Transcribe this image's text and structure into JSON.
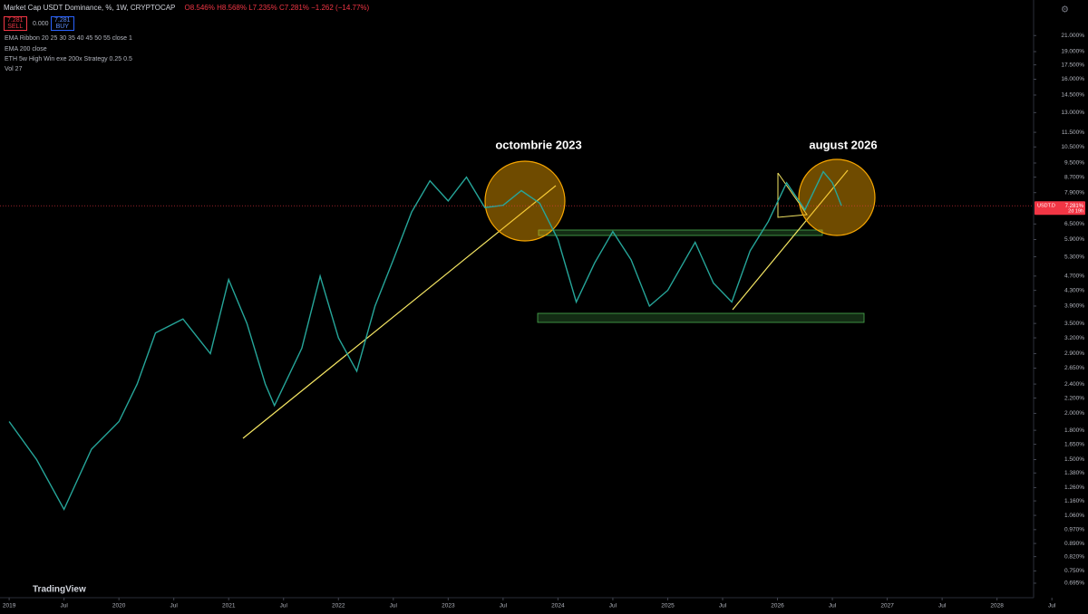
{
  "header": {
    "symbol_line": "Market Cap USDT Dominance, %, 1W, CRYPTOCAP",
    "ohlc": "O8.546% H8.568% L7.235% C7.281% −1.262 (−14.77%)",
    "sell_price": "7.281",
    "sell": "SELL",
    "spread": "0.000",
    "buy_price": "7.281",
    "buy": "BUY",
    "indicators": [
      "EMA Ribbon 20 25 30 35 40 45 50 55 close 1",
      "EMA 200 close",
      "ETH 5w High Win exe 200x Strategy 0.25 0.5",
      "Vol 27"
    ],
    "logo": "TradingView"
  },
  "chart_data": {
    "type": "line",
    "title": "Market Cap USDT Dominance, %, 1W, CRYPTOCAP",
    "annotations": [
      "octombrie 2023",
      "august 2026"
    ],
    "price_tag": "USDT.D",
    "price_label": "7.281%",
    "countdown": "2d 19h",
    "last_price": 7.281,
    "log_scale": true,
    "grid": false,
    "color": "#26a69a",
    "x": [
      "2019-01",
      "2019-04",
      "2019-07",
      "2019-10",
      "2020-01",
      "2020-03",
      "2020-05",
      "2020-08",
      "2020-11",
      "2021-01",
      "2021-03",
      "2021-05",
      "2021-06",
      "2021-09",
      "2021-11",
      "2022-01",
      "2022-03",
      "2022-05",
      "2022-07",
      "2022-09",
      "2022-11",
      "2023-01",
      "2023-03",
      "2023-05",
      "2023-07",
      "2023-09",
      "2023-11",
      "2024-01",
      "2024-03",
      "2024-05",
      "2024-07",
      "2024-09",
      "2024-11",
      "2025-01",
      "2025-04",
      "2025-06",
      "2025-08",
      "2025-10",
      "2025-12",
      "2026-02",
      "2026-04",
      "2026-06",
      "2026-07",
      "2026-08"
    ],
    "series": [
      {
        "name": "USDT.D",
        "color": "#26a69a",
        "values": [
          1.9,
          1.5,
          1.1,
          1.6,
          1.9,
          2.4,
          3.3,
          3.6,
          2.9,
          4.6,
          3.5,
          2.4,
          2.1,
          3.0,
          4.7,
          3.2,
          2.6,
          3.9,
          5.2,
          7.0,
          8.5,
          7.5,
          8.7,
          7.2,
          7.3,
          8.0,
          7.4,
          5.9,
          4.0,
          5.1,
          6.2,
          5.2,
          3.9,
          4.3,
          5.8,
          4.5,
          4.0,
          5.5,
          6.6,
          8.4,
          7.1,
          9.0,
          8.4,
          7.281
        ]
      }
    ],
    "xlim": [
      "2018-12",
      "2028-05"
    ],
    "xticks": [
      {
        "value": "2019-01",
        "label": "2019"
      },
      {
        "value": "2019-07",
        "label": "Jul"
      },
      {
        "value": "2020-01",
        "label": "2020"
      },
      {
        "value": "2020-07",
        "label": "Jul"
      },
      {
        "value": "2021-01",
        "label": "2021"
      },
      {
        "value": "2021-07",
        "label": "Jul"
      },
      {
        "value": "2022-01",
        "label": "2022"
      },
      {
        "value": "2022-07",
        "label": "Jul"
      },
      {
        "value": "2023-01",
        "label": "2023"
      },
      {
        "value": "2023-07",
        "label": "Jul"
      },
      {
        "value": "2024-01",
        "label": "2024"
      },
      {
        "value": "2024-07",
        "label": "Jul"
      },
      {
        "value": "2025-01",
        "label": "2025"
      },
      {
        "value": "2025-07",
        "label": "Jul"
      },
      {
        "value": "2026-01",
        "label": "2026"
      },
      {
        "value": "2026-07",
        "label": "Jul"
      },
      {
        "value": "2027-01",
        "label": "2027"
      },
      {
        "value": "2027-07",
        "label": "Jul"
      },
      {
        "value": "2028-01",
        "label": "2028"
      },
      {
        "value": "2028-07",
        "label": "Jul"
      }
    ],
    "ylim": [
      0.635,
      26.2
    ],
    "yticks": [
      {
        "value": 21,
        "label": "21.000%"
      },
      {
        "value": 19,
        "label": "19.000%"
      },
      {
        "value": 17.5,
        "label": "17.500%"
      },
      {
        "value": 16,
        "label": "16.000%"
      },
      {
        "value": 14.5,
        "label": "14.500%"
      },
      {
        "value": 13,
        "label": "13.000%"
      },
      {
        "value": 11.5,
        "label": "11.500%"
      },
      {
        "value": 10.5,
        "label": "10.500%"
      },
      {
        "value": 9.5,
        "label": "9.500%"
      },
      {
        "value": 8.7,
        "label": "8.700%"
      },
      {
        "value": 7.9,
        "label": "7.900%"
      },
      {
        "value": 6.5,
        "label": "6.500%"
      },
      {
        "value": 5.9,
        "label": "5.900%"
      },
      {
        "value": 5.3,
        "label": "5.300%"
      },
      {
        "value": 4.7,
        "label": "4.700%"
      },
      {
        "value": 4.3,
        "label": "4.300%"
      },
      {
        "value": 3.9,
        "label": "3.900%"
      },
      {
        "value": 3.5,
        "label": "3.500%"
      },
      {
        "value": 3.2,
        "label": "3.200%"
      },
      {
        "value": 2.9,
        "label": "2.900%"
      },
      {
        "value": 2.65,
        "label": "2.650%"
      },
      {
        "value": 2.4,
        "label": "2.400%"
      },
      {
        "value": 2.2,
        "label": "2.200%"
      },
      {
        "value": 2,
        "label": "2.000%"
      },
      {
        "value": 1.8,
        "label": "1.800%"
      },
      {
        "value": 1.65,
        "label": "1.650%"
      },
      {
        "value": 1.5,
        "label": "1.500%"
      },
      {
        "value": 1.38,
        "label": "1.380%"
      },
      {
        "value": 1.26,
        "label": "1.260%"
      },
      {
        "value": 1.16,
        "label": "1.160%"
      },
      {
        "value": 1.06,
        "label": "1.060%"
      },
      {
        "value": 0.97,
        "label": "0.970%"
      },
      {
        "value": 0.89,
        "label": "0.890%"
      },
      {
        "value": 0.82,
        "label": "0.820%"
      },
      {
        "value": 0.75,
        "label": "0.750%"
      },
      {
        "value": 0.695,
        "label": "0.695%"
      }
    ]
  }
}
